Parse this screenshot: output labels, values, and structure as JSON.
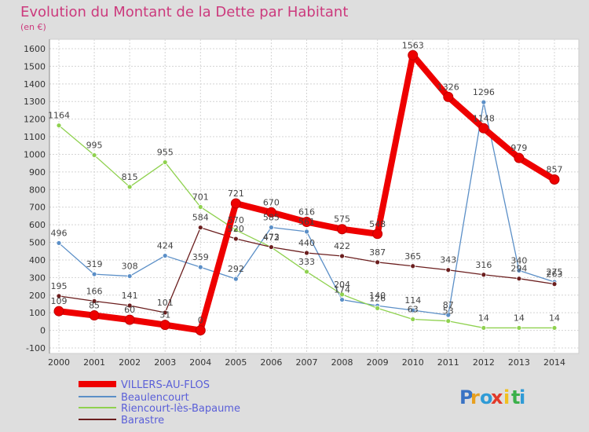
{
  "chart_data": {
    "type": "line",
    "title": "Evolution du Montant de la Dette par Habitant",
    "subtitle": "(en €)",
    "x": [
      "2000",
      "2001",
      "2002",
      "2003",
      "2004",
      "2005",
      "2006",
      "2007",
      "2008",
      "2009",
      "2010",
      "2011",
      "2012",
      "2013",
      "2014"
    ],
    "ylim": [
      -100,
      1600
    ],
    "yticks": [
      -100,
      0,
      100,
      200,
      300,
      400,
      500,
      600,
      700,
      800,
      900,
      1000,
      1100,
      1200,
      1300,
      1400,
      1500,
      1600
    ],
    "grid": true,
    "legend_position": "bottom-left",
    "series": [
      {
        "name": "VILLERS-AU-FLOS",
        "color": "#ee0000",
        "values": [
          109,
          85,
          60,
          31,
          0,
          721,
          670,
          616,
          575,
          548,
          1563,
          1326,
          1148,
          979,
          857
        ]
      },
      {
        "name": "Beaulencourt",
        "color": "#5b8fc7",
        "values": [
          496,
          319,
          308,
          424,
          359,
          292,
          585,
          561,
          174,
          140,
          114,
          87,
          1296,
          340,
          275
        ]
      },
      {
        "name": "Riencourt-lès-Bapaume",
        "color": "#8fd14f",
        "values": [
          1164,
          995,
          815,
          955,
          701,
          570,
          472,
          333,
          204,
          126,
          63,
          53,
          14,
          14,
          14
        ]
      },
      {
        "name": "Barastre",
        "color": "#6b1e1e",
        "values": [
          195,
          166,
          141,
          101,
          584,
          520,
          473,
          440,
          422,
          387,
          365,
          343,
          316,
          294,
          263
        ]
      }
    ]
  },
  "brand": {
    "logo_text": "Proxiti",
    "logo_letters": [
      "P",
      "r",
      "o",
      "x",
      "i",
      "t",
      "i"
    ]
  }
}
